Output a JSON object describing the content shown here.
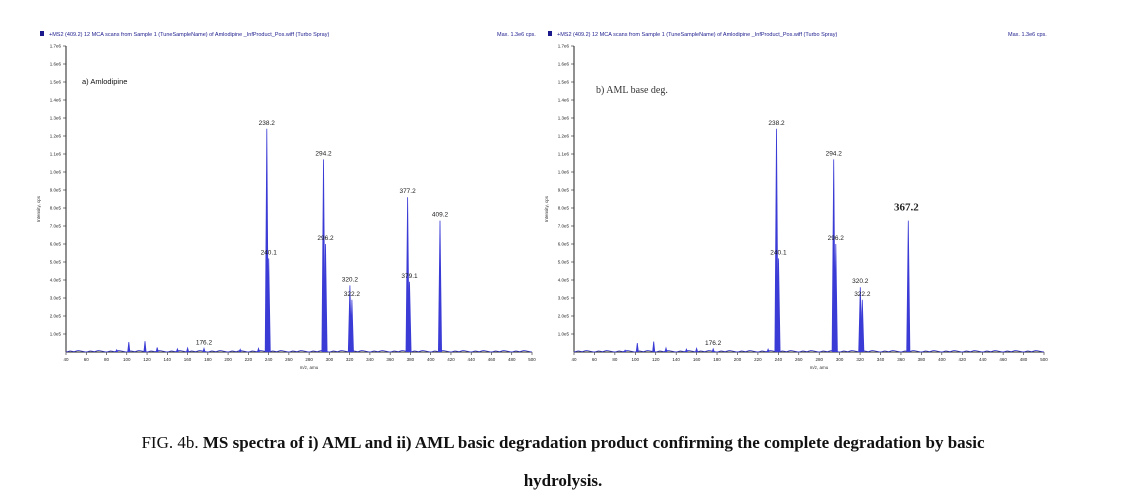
{
  "caption": {
    "prefix": "FIG. 4b.",
    "line1_bold": "MS spectra of i) AML and ii) AML basic degradation product confirming the complete degradation by basic",
    "line2_bold": "hydrolysis."
  },
  "colors": {
    "trace": "#3b3bd6",
    "axis": "#222222",
    "header_marker": "#1a1a8c"
  },
  "chart_data": [
    {
      "type": "line",
      "panel_label": "a) Amlodipine",
      "header": "+MS2 (409.2)   12 MCA scans from Sample 1 (TuneSampleName) of Amlodipine _InfProduct_Pos.wiff (Turbo Spray)",
      "max_label": "Max. 1.3e6 cps.",
      "xlabel": "m/z, amu",
      "ylabel": "Intensity, cps",
      "xlim": [
        40,
        500
      ],
      "ylim": [
        0,
        1700000
      ],
      "x_ticks": [
        "40",
        "60",
        "80",
        "100",
        "120",
        "140",
        "160",
        "180",
        "200",
        "220",
        "240",
        "260",
        "280",
        "300",
        "320",
        "340",
        "360",
        "380",
        "400",
        "420",
        "440",
        "460",
        "480",
        "500"
      ],
      "y_ticks": [
        "1.0e5",
        "2.0e5",
        "3.0e5",
        "4.0e5",
        "5.0e5",
        "6.0e5",
        "7.0e5",
        "8.0e5",
        "9.0e5",
        "1.0e6",
        "1.1e6",
        "1.2e6",
        "1.3e6",
        "1.4e6",
        "1.5e6",
        "1.6e6",
        "1.7e6"
      ],
      "peaks": [
        {
          "mz": 238.2,
          "intensity": 1240000,
          "label": "238.2"
        },
        {
          "mz": 240.1,
          "intensity": 520000,
          "label": "240.1"
        },
        {
          "mz": 294.2,
          "intensity": 1070000,
          "label": "294.2"
        },
        {
          "mz": 296.2,
          "intensity": 600000,
          "label": "296.2"
        },
        {
          "mz": 320.2,
          "intensity": 370000,
          "label": "320.2"
        },
        {
          "mz": 322.2,
          "intensity": 290000,
          "label": "322.2"
        },
        {
          "mz": 377.2,
          "intensity": 860000,
          "label": "377.2"
        },
        {
          "mz": 379.1,
          "intensity": 390000,
          "label": "379.1"
        },
        {
          "mz": 409.2,
          "intensity": 730000,
          "label": "409.2"
        },
        {
          "mz": 176.2,
          "intensity": 20000,
          "label": "176.2"
        },
        {
          "mz": 102,
          "intensity": 55000,
          "label": ""
        },
        {
          "mz": 118,
          "intensity": 60000,
          "label": ""
        },
        {
          "mz": 130,
          "intensity": 25000,
          "label": ""
        },
        {
          "mz": 150,
          "intensity": 18000,
          "label": ""
        },
        {
          "mz": 160,
          "intensity": 22000,
          "label": ""
        },
        {
          "mz": 90,
          "intensity": 12000,
          "label": ""
        },
        {
          "mz": 212,
          "intensity": 15000,
          "label": ""
        },
        {
          "mz": 230,
          "intensity": 20000,
          "label": ""
        }
      ]
    },
    {
      "type": "line",
      "panel_label": "b) AML base deg.",
      "header": "+MS2 (409.2)   12 MCA scans from Sample 1 (TuneSampleName) of Amlodipine _InfProduct_Pos.wiff (Turbo Spray)",
      "max_label": "Max. 1.3e6 cps.",
      "xlabel": "m/z, amu",
      "ylabel": "Intensity, cps",
      "xlim": [
        40,
        500
      ],
      "ylim": [
        0,
        1700000
      ],
      "x_ticks": [
        "40",
        "60",
        "80",
        "100",
        "120",
        "140",
        "160",
        "180",
        "200",
        "220",
        "240",
        "260",
        "280",
        "300",
        "320",
        "340",
        "360",
        "380",
        "400",
        "420",
        "440",
        "460",
        "480",
        "500"
      ],
      "y_ticks": [
        "1.0e5",
        "2.0e5",
        "3.0e5",
        "4.0e5",
        "5.0e5",
        "6.0e5",
        "7.0e5",
        "8.0e5",
        "9.0e5",
        "1.0e6",
        "1.1e6",
        "1.2e6",
        "1.3e6",
        "1.4e6",
        "1.5e6",
        "1.6e6",
        "1.7e6"
      ],
      "peaks": [
        {
          "mz": 238.2,
          "intensity": 1240000,
          "label": "238.2"
        },
        {
          "mz": 240.1,
          "intensity": 520000,
          "label": "240.1"
        },
        {
          "mz": 294.2,
          "intensity": 1070000,
          "label": "294.2"
        },
        {
          "mz": 296.2,
          "intensity": 600000,
          "label": "296.2"
        },
        {
          "mz": 320.2,
          "intensity": 360000,
          "label": "320.2"
        },
        {
          "mz": 322.2,
          "intensity": 290000,
          "label": "322.2"
        },
        {
          "mz": 367.2,
          "intensity": 730000,
          "label": "367.2",
          "emphasis": true
        },
        {
          "mz": 176.2,
          "intensity": 18000,
          "label": "176.2"
        },
        {
          "mz": 102,
          "intensity": 50000,
          "label": ""
        },
        {
          "mz": 118,
          "intensity": 58000,
          "label": ""
        },
        {
          "mz": 130,
          "intensity": 22000,
          "label": ""
        },
        {
          "mz": 150,
          "intensity": 16000,
          "label": ""
        },
        {
          "mz": 160,
          "intensity": 20000,
          "label": ""
        },
        {
          "mz": 90,
          "intensity": 10000,
          "label": ""
        },
        {
          "mz": 230,
          "intensity": 16000,
          "label": ""
        }
      ]
    }
  ]
}
